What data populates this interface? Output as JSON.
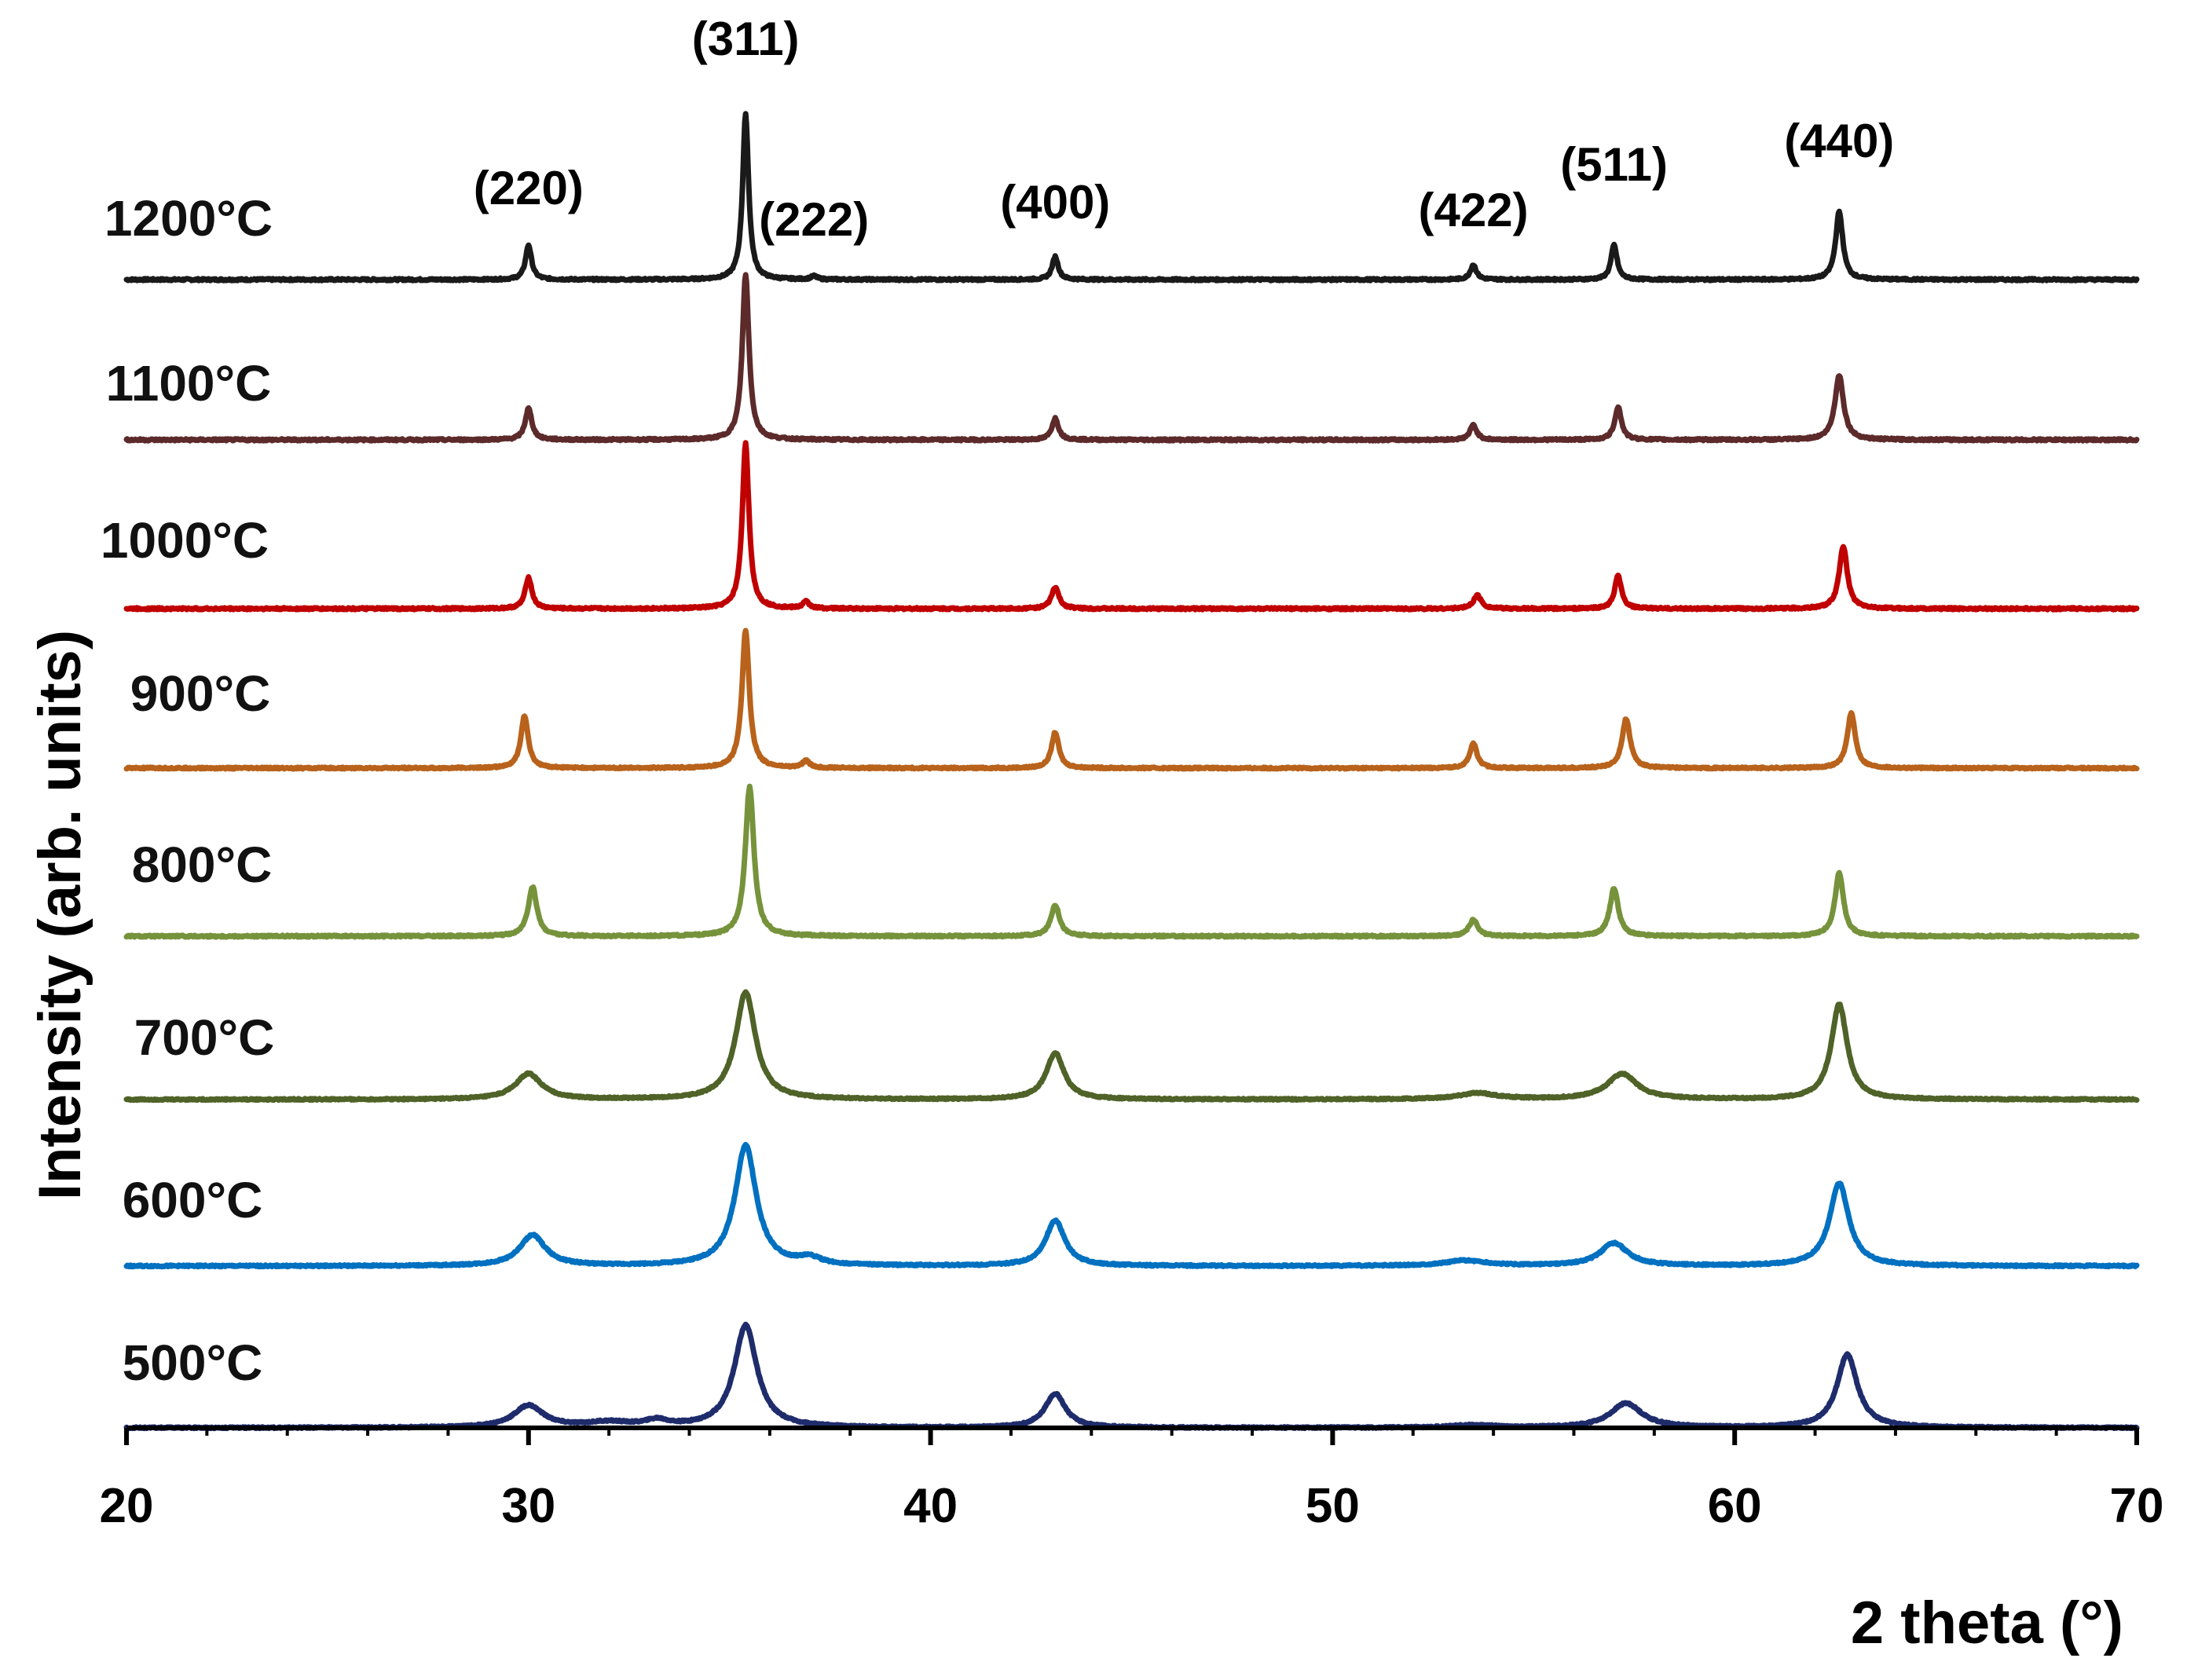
{
  "chart_data": {
    "type": "line",
    "subtype": "stacked-offset XRD patterns",
    "title": "",
    "xlabel": "2 theta (°)",
    "ylabel": "Intensity (arb. units)",
    "xlim": [
      20,
      70
    ],
    "xticks": [
      20,
      30,
      40,
      50,
      60,
      70
    ],
    "grid": false,
    "peak_labels": [
      {
        "hkl": "(220)",
        "x": 30.0
      },
      {
        "hkl": "(311)",
        "x": 35.4
      },
      {
        "hkl": "(222)",
        "x": 37.1
      },
      {
        "hkl": "(400)",
        "x": 43.1
      },
      {
        "hkl": "(422)",
        "x": 53.5
      },
      {
        "hkl": "(511)",
        "x": 57.0
      },
      {
        "hkl": "(440)",
        "x": 62.6
      }
    ],
    "series": [
      {
        "name": "1200°C",
        "color": "#1a1a1a",
        "width": 0.09,
        "peaks": [
          [
            30.0,
            0.21,
            1
          ],
          [
            35.4,
            1.0,
            1
          ],
          [
            37.1,
            0.02,
            1
          ],
          [
            43.1,
            0.14,
            1
          ],
          [
            53.5,
            0.09,
            1
          ],
          [
            57.0,
            0.21,
            1
          ],
          [
            62.6,
            0.41,
            1.2
          ]
        ]
      },
      {
        "name": "1100°C",
        "color": "#5c2a2a",
        "width": 0.1,
        "peaks": [
          [
            30.0,
            0.19,
            1
          ],
          [
            35.4,
            1.0,
            1
          ],
          [
            43.1,
            0.13,
            1
          ],
          [
            53.5,
            0.09,
            1
          ],
          [
            57.1,
            0.2,
            1
          ],
          [
            62.6,
            0.39,
            1.3
          ]
        ]
      },
      {
        "name": "1000°C",
        "color": "#c00000",
        "width": 0.1,
        "peaks": [
          [
            30.0,
            0.19,
            1
          ],
          [
            35.4,
            1.0,
            1
          ],
          [
            36.9,
            0.04,
            1
          ],
          [
            43.1,
            0.13,
            1.1
          ],
          [
            53.6,
            0.08,
            1.2
          ],
          [
            57.1,
            0.2,
            1
          ],
          [
            62.7,
            0.38,
            1.2
          ]
        ]
      },
      {
        "name": "900°C",
        "color": "#b8621b",
        "width": 0.11,
        "peaks": [
          [
            29.9,
            0.38,
            1
          ],
          [
            35.4,
            1.0,
            1
          ],
          [
            36.9,
            0.05,
            1
          ],
          [
            43.1,
            0.26,
            1
          ],
          [
            53.5,
            0.18,
            1
          ],
          [
            57.3,
            0.36,
            1.1
          ],
          [
            62.9,
            0.4,
            1.1
          ]
        ]
      },
      {
        "name": "800°C",
        "color": "#76933c",
        "width": 0.13,
        "peaks": [
          [
            30.1,
            0.33,
            1
          ],
          [
            35.5,
            1.0,
            1
          ],
          [
            43.1,
            0.21,
            1
          ],
          [
            53.5,
            0.11,
            1
          ],
          [
            57.0,
            0.32,
            1
          ],
          [
            62.6,
            0.42,
            1
          ]
        ]
      },
      {
        "name": "700°C",
        "color": "#4f6228",
        "width": 0.3,
        "peaks": [
          [
            30.0,
            0.21,
            1.3
          ],
          [
            35.4,
            0.88,
            1
          ],
          [
            43.1,
            0.38,
            0.9
          ],
          [
            53.6,
            0.05,
            2
          ],
          [
            57.2,
            0.21,
            1.5
          ],
          [
            62.6,
            0.78,
            0.8
          ]
        ]
      },
      {
        "name": "600°C",
        "color": "#0070c0",
        "width": 0.32,
        "peaks": [
          [
            30.1,
            0.23,
            1.2
          ],
          [
            35.4,
            0.9,
            1
          ],
          [
            37.0,
            0.05,
            1
          ],
          [
            43.1,
            0.34,
            0.9
          ],
          [
            53.3,
            0.04,
            2
          ],
          [
            57.0,
            0.17,
            1.3
          ],
          [
            62.6,
            0.62,
            0.9
          ]
        ]
      },
      {
        "name": "500°C",
        "color": "#1f2c6b",
        "width": 0.34,
        "peaks": [
          [
            30.0,
            0.18,
            1.3
          ],
          [
            32.0,
            0.04,
            2
          ],
          [
            33.2,
            0.05,
            1
          ],
          [
            35.4,
            0.84,
            1
          ],
          [
            43.1,
            0.28,
            0.9
          ],
          [
            53.5,
            0.02,
            2
          ],
          [
            57.3,
            0.2,
            1.4
          ],
          [
            62.8,
            0.6,
            0.9
          ]
        ]
      }
    ]
  }
}
